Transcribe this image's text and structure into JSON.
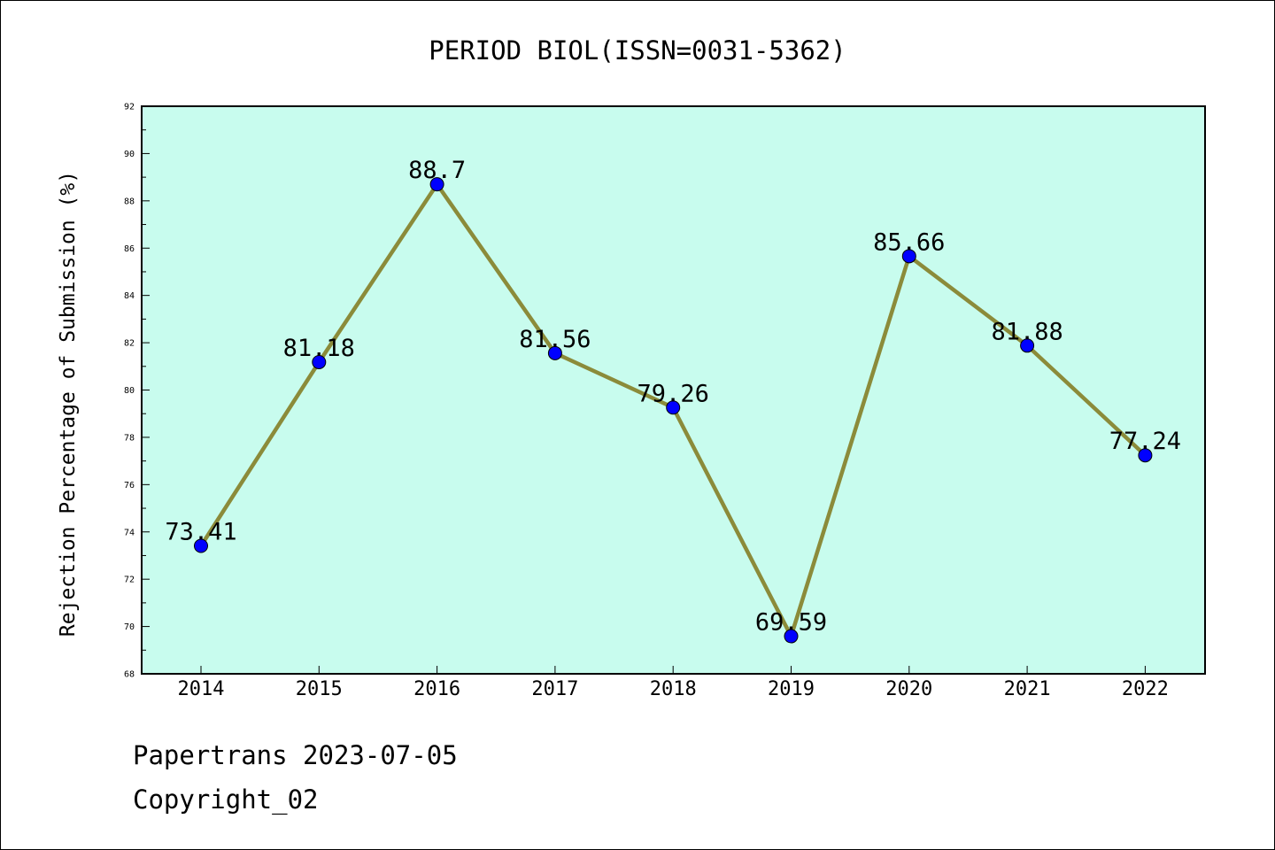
{
  "chart_data": {
    "type": "line",
    "title": "PERIOD BIOL(ISSN=0031-5362)",
    "xlabel": "",
    "ylabel": "Rejection Percentage of Submission (%)",
    "categories": [
      "2014",
      "2015",
      "2016",
      "2017",
      "2018",
      "2019",
      "2020",
      "2021",
      "2022"
    ],
    "values": [
      73.41,
      81.18,
      88.7,
      81.56,
      79.26,
      69.59,
      85.66,
      81.88,
      77.24
    ],
    "value_labels": [
      "73.41",
      "81.18",
      "88.7",
      "81.56",
      "79.26",
      "69.59",
      "85.66",
      "81.88",
      "77.24"
    ],
    "ylim": [
      68,
      92
    ],
    "yticks": [
      "68",
      "70",
      "72",
      "74",
      "76",
      "78",
      "80",
      "82",
      "84",
      "86",
      "88",
      "90",
      "92"
    ],
    "grid": false,
    "legend": "none",
    "colors": {
      "plot_background": "#c8fcee",
      "line": "#8b8b3a",
      "marker": "#0000ff"
    }
  },
  "footer": {
    "line1": "Papertrans 2023-07-05",
    "line2": "Copyright_02"
  }
}
